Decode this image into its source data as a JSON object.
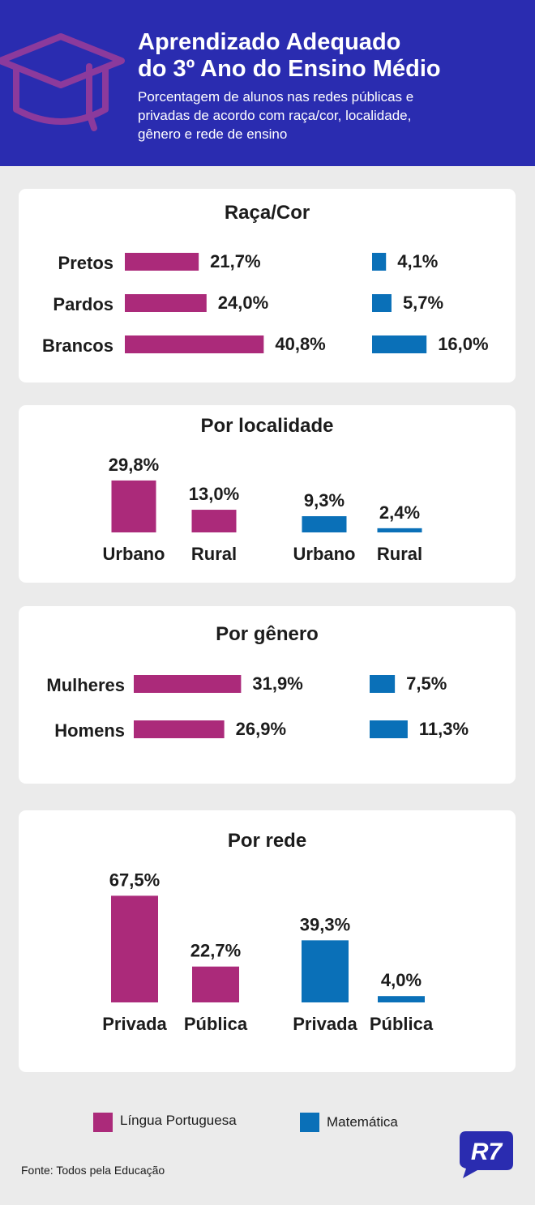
{
  "header": {
    "title_line1": "Aprendizado Adequado",
    "title_line2": "do 3º Ano do Ensino Médio",
    "subtitle_line1": "Porcentagem de alunos nas redes públicas e",
    "subtitle_line2": "privadas de acordo com raça/cor, localidade,",
    "subtitle_line3": "gênero e rede de ensino",
    "icon": "graduation-cap-icon"
  },
  "colors": {
    "portuguese": "#ab2a7a",
    "math": "#0a70b8",
    "header_bg": "#2a2cb0"
  },
  "chart_data": [
    {
      "type": "bar",
      "orientation": "horizontal",
      "title": "Raça/Cor",
      "categories": [
        "Pretos",
        "Pardos",
        "Brancos"
      ],
      "series": [
        {
          "name": "Língua Portuguesa",
          "values": [
            21.7,
            24.0,
            40.8
          ],
          "labels": [
            "21,7%",
            "24,0%",
            "40,8%"
          ]
        },
        {
          "name": "Matemática",
          "values": [
            4.1,
            5.7,
            16.0
          ],
          "labels": [
            "4,1%",
            "5,7%",
            "16,0%"
          ]
        }
      ]
    },
    {
      "type": "bar",
      "orientation": "vertical",
      "title": "Por localidade",
      "categories": [
        "Urbano",
        "Rural"
      ],
      "series": [
        {
          "name": "Língua Portuguesa",
          "values": [
            29.8,
            13.0
          ],
          "labels": [
            "29,8%",
            "13,0%"
          ]
        },
        {
          "name": "Matemática",
          "values": [
            9.3,
            2.4
          ],
          "labels": [
            "9,3%",
            "2,4%"
          ]
        }
      ]
    },
    {
      "type": "bar",
      "orientation": "horizontal",
      "title": "Por gênero",
      "categories": [
        "Mulheres",
        "Homens"
      ],
      "series": [
        {
          "name": "Língua Portuguesa",
          "values": [
            31.9,
            26.9
          ],
          "labels": [
            "31,9%",
            "26,9%"
          ]
        },
        {
          "name": "Matemática",
          "values": [
            7.5,
            11.3
          ],
          "labels": [
            "7,5%",
            "11,3%"
          ]
        }
      ]
    },
    {
      "type": "bar",
      "orientation": "vertical",
      "title": "Por rede",
      "categories": [
        "Privada",
        "Pública"
      ],
      "series": [
        {
          "name": "Língua Portuguesa",
          "values": [
            67.5,
            22.7
          ],
          "labels": [
            "67,5%",
            "22,7%"
          ]
        },
        {
          "name": "Matemática",
          "values": [
            39.3,
            4.0
          ],
          "labels": [
            "39,3%",
            "4,0%"
          ]
        }
      ]
    }
  ],
  "legend": {
    "portuguese_label": "Língua Portuguesa",
    "math_label": "Matemática"
  },
  "footer": {
    "source": "Fonte: Todos pela Educação",
    "logo": "R7"
  }
}
